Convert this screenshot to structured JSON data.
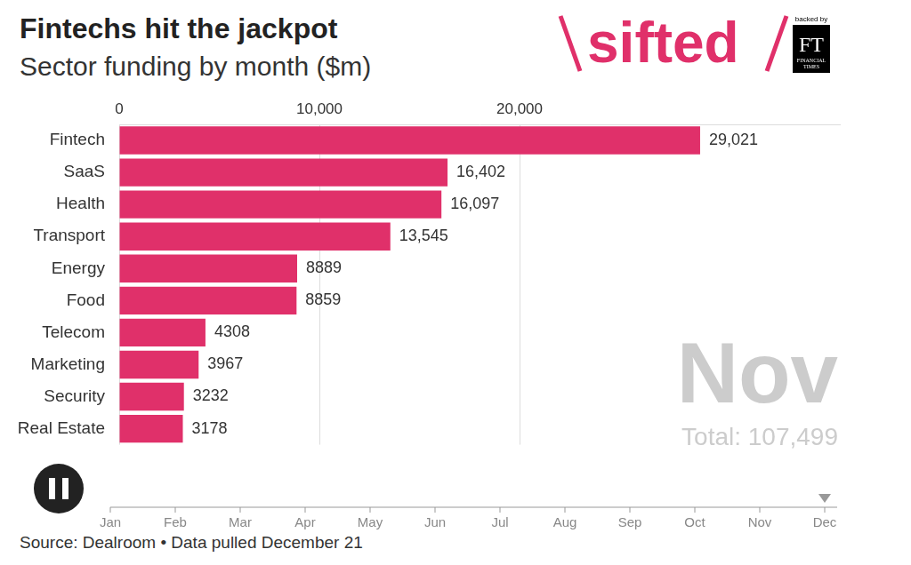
{
  "header": {
    "title": "Fintechs hit the jackpot",
    "subtitle": "Sector funding by month ($m)"
  },
  "logo": {
    "name": "sifted",
    "backed_by": "backed by",
    "ft": "FT",
    "ft_name": [
      "FINANCIAL",
      "TIMES"
    ]
  },
  "chart_data": {
    "type": "bar",
    "orientation": "horizontal",
    "categories": [
      "Fintech",
      "SaaS",
      "Health",
      "Transport",
      "Energy",
      "Food",
      "Telecom",
      "Marketing",
      "Security",
      "Real Estate"
    ],
    "values": [
      29021,
      16402,
      16097,
      13545,
      8889,
      8859,
      4308,
      3967,
      3232,
      3178
    ],
    "value_labels": [
      "29,021",
      "16,402",
      "16,097",
      "13,545",
      "8889",
      "8859",
      "4308",
      "3967",
      "3232",
      "3178"
    ],
    "data_labels": true,
    "color": "#e0306a",
    "xlim": [
      0,
      36000
    ],
    "xticks": [
      0,
      {
        "value": 10000,
        "label": "10,000"
      },
      {
        "value": 20000,
        "label": "20,000"
      }
    ],
    "grid": true
  },
  "overlay": {
    "period": "Nov",
    "total": "Total: 107,499"
  },
  "timeline": {
    "months": [
      "Jan",
      "Feb",
      "Mar",
      "Apr",
      "May",
      "Jun",
      "Jul",
      "Aug",
      "Sep",
      "Oct",
      "Nov",
      "Dec"
    ],
    "marker": "Dec"
  },
  "source": "Source: Dealroom • Data pulled December 21"
}
